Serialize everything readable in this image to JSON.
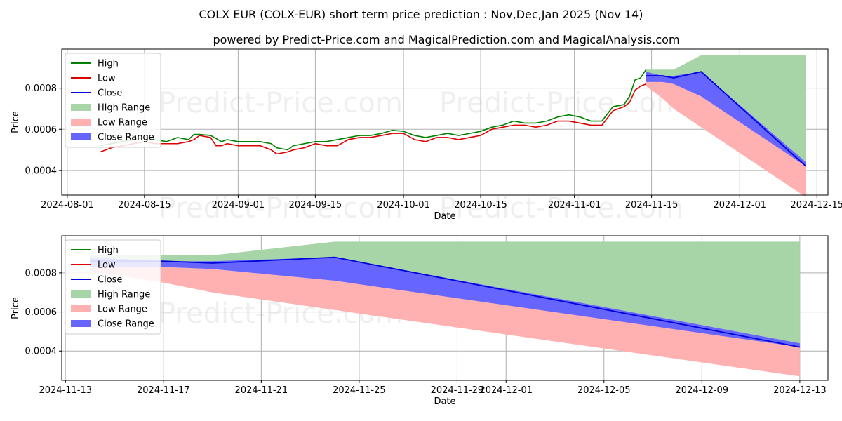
{
  "title": "COLX EUR (COLX-EUR) short term price prediction : Nov,Dec,Jan 2025 (Nov 14)",
  "subtitle": "powered by Predict-Price.com and MagicalPrediction.com and MagicalAnalysis.com",
  "watermark": "Predict-Price.com",
  "colors": {
    "high": "#008000",
    "low": "#dd0000",
    "close": "#0000dd",
    "high_range": "#a8d5a8",
    "low_range": "#ffb0b0",
    "close_range": "#6666ff",
    "grid": "#b0b0b0"
  },
  "chart_data": [
    {
      "type": "line",
      "panel": "top",
      "xlabel": "Date",
      "ylabel": "Price",
      "xlim": [
        "2024-07-31",
        "2024-12-17"
      ],
      "ylim": [
        0.00028,
        0.00099
      ],
      "x_ticks": [
        "2024-08-01",
        "2024-08-15",
        "2024-09-01",
        "2024-09-15",
        "2024-10-01",
        "2024-10-15",
        "2024-11-01",
        "2024-11-15",
        "2024-12-01",
        "2024-12-15"
      ],
      "y_ticks": [
        "0.0004",
        "0.0006",
        "0.0008"
      ],
      "legend": {
        "position": "top-left",
        "entries": [
          "High",
          "Low",
          "Close",
          "High Range",
          "Low Range",
          "Close Range"
        ]
      },
      "history": [
        [
          "2024-08-07",
          0.00052,
          0.00049
        ],
        [
          "2024-08-09",
          0.00053,
          0.00051
        ],
        [
          "2024-08-11",
          0.00054,
          0.00052
        ],
        [
          "2024-08-13",
          0.00055,
          0.00053
        ],
        [
          "2024-08-15",
          0.00056,
          0.00054
        ],
        [
          "2024-08-17",
          0.00055,
          0.00053
        ],
        [
          "2024-08-19",
          0.00054,
          0.00053
        ],
        [
          "2024-08-21",
          0.00056,
          0.00053
        ],
        [
          "2024-08-23",
          0.00055,
          0.00054
        ],
        [
          "2024-08-24",
          0.000575,
          0.00055
        ],
        [
          "2024-08-25",
          0.000575,
          0.00057
        ],
        [
          "2024-08-27",
          0.00057,
          0.00056
        ],
        [
          "2024-08-28",
          0.000555,
          0.00052
        ],
        [
          "2024-08-29",
          0.00054,
          0.00052
        ],
        [
          "2024-08-30",
          0.00055,
          0.00053
        ],
        [
          "2024-09-01",
          0.00054,
          0.00052
        ],
        [
          "2024-09-03",
          0.00054,
          0.00052
        ],
        [
          "2024-09-05",
          0.00054,
          0.00052
        ],
        [
          "2024-09-07",
          0.00053,
          0.0005
        ],
        [
          "2024-09-08",
          0.00051,
          0.00048
        ],
        [
          "2024-09-10",
          0.0005,
          0.00049
        ],
        [
          "2024-09-11",
          0.00052,
          0.0005
        ],
        [
          "2024-09-13",
          0.00053,
          0.00051
        ],
        [
          "2024-09-15",
          0.00054,
          0.00053
        ],
        [
          "2024-09-17",
          0.00054,
          0.00052
        ],
        [
          "2024-09-19",
          0.00055,
          0.00052
        ],
        [
          "2024-09-21",
          0.00056,
          0.00055
        ],
        [
          "2024-09-23",
          0.00057,
          0.00056
        ],
        [
          "2024-09-25",
          0.00057,
          0.00056
        ],
        [
          "2024-09-27",
          0.00058,
          0.00057
        ],
        [
          "2024-09-29",
          0.000595,
          0.00058
        ],
        [
          "2024-10-01",
          0.00059,
          0.00058
        ],
        [
          "2024-10-03",
          0.00057,
          0.00055
        ],
        [
          "2024-10-05",
          0.00056,
          0.00054
        ],
        [
          "2024-10-07",
          0.00057,
          0.00056
        ],
        [
          "2024-10-09",
          0.00058,
          0.00056
        ],
        [
          "2024-10-11",
          0.00057,
          0.00055
        ],
        [
          "2024-10-13",
          0.00058,
          0.00056
        ],
        [
          "2024-10-15",
          0.00059,
          0.00057
        ],
        [
          "2024-10-17",
          0.00061,
          0.0006
        ],
        [
          "2024-10-19",
          0.00062,
          0.00061
        ],
        [
          "2024-10-21",
          0.00064,
          0.00062
        ],
        [
          "2024-10-23",
          0.00063,
          0.00062
        ],
        [
          "2024-10-25",
          0.00063,
          0.00061
        ],
        [
          "2024-10-27",
          0.00064,
          0.00062
        ],
        [
          "2024-10-29",
          0.00066,
          0.00064
        ],
        [
          "2024-10-31",
          0.00067,
          0.00064
        ],
        [
          "2024-11-02",
          0.00066,
          0.00063
        ],
        [
          "2024-11-04",
          0.00064,
          0.00062
        ],
        [
          "2024-11-06",
          0.00064,
          0.00062
        ],
        [
          "2024-11-08",
          0.00071,
          0.00069
        ],
        [
          "2024-11-10",
          0.00072,
          0.00071
        ],
        [
          "2024-11-11",
          0.00076,
          0.00073
        ],
        [
          "2024-11-12",
          0.00084,
          0.00079
        ],
        [
          "2024-11-13",
          0.00085,
          0.00081
        ],
        [
          "2024-11-14",
          0.00089,
          0.00082
        ]
      ]
    },
    {
      "type": "area",
      "panel": "bottom",
      "xlabel": "Date",
      "ylabel": "Price",
      "xlim": [
        "2024-11-12.85",
        "2024-12-14.15"
      ],
      "ylim": [
        0.00025,
        0.00099
      ],
      "x_ticks": [
        "2024-11-13",
        "2024-11-17",
        "2024-11-21",
        "2024-11-25",
        "2024-11-29",
        "2024-12-01",
        "2024-12-05",
        "2024-12-09",
        "2024-12-13"
      ],
      "y_ticks": [
        "0.0004",
        "0.0006",
        "0.0008"
      ],
      "legend": {
        "position": "top-left",
        "entries": [
          "High",
          "Low",
          "Close",
          "High Range",
          "Low Range",
          "Close Range"
        ]
      },
      "forecast": [
        {
          "date": "2024-11-14",
          "high_upper": 0.00089,
          "high_lower": 0.00085,
          "low_upper": 0.00083,
          "low_lower": 0.00081,
          "close_upper": 0.00088,
          "close_lower": 0.00083,
          "close": 0.00086
        },
        {
          "date": "2024-11-17",
          "high_upper": 0.00089,
          "high_lower": 0.00086,
          "low_upper": 0.00083,
          "low_lower": 0.00075,
          "close_upper": 0.00086,
          "close_lower": 0.00083,
          "close": 0.00086
        },
        {
          "date": "2024-11-19",
          "high_upper": 0.00089,
          "high_lower": 0.00085,
          "low_upper": 0.00082,
          "low_lower": 0.0007,
          "close_upper": 0.00086,
          "close_lower": 0.00082,
          "close": 0.00085
        },
        {
          "date": "2024-11-24",
          "high_upper": 0.00096,
          "high_lower": 0.00088,
          "low_upper": 0.00076,
          "low_lower": 0.00061,
          "close_upper": 0.00088,
          "close_lower": 0.00076,
          "close": 0.00088
        },
        {
          "date": "2024-12-13",
          "high_upper": 0.00096,
          "high_lower": 0.00044,
          "low_upper": 0.00043,
          "low_lower": 0.00027,
          "close_upper": 0.00044,
          "close_lower": 0.00042,
          "close": 0.00042
        }
      ]
    }
  ]
}
